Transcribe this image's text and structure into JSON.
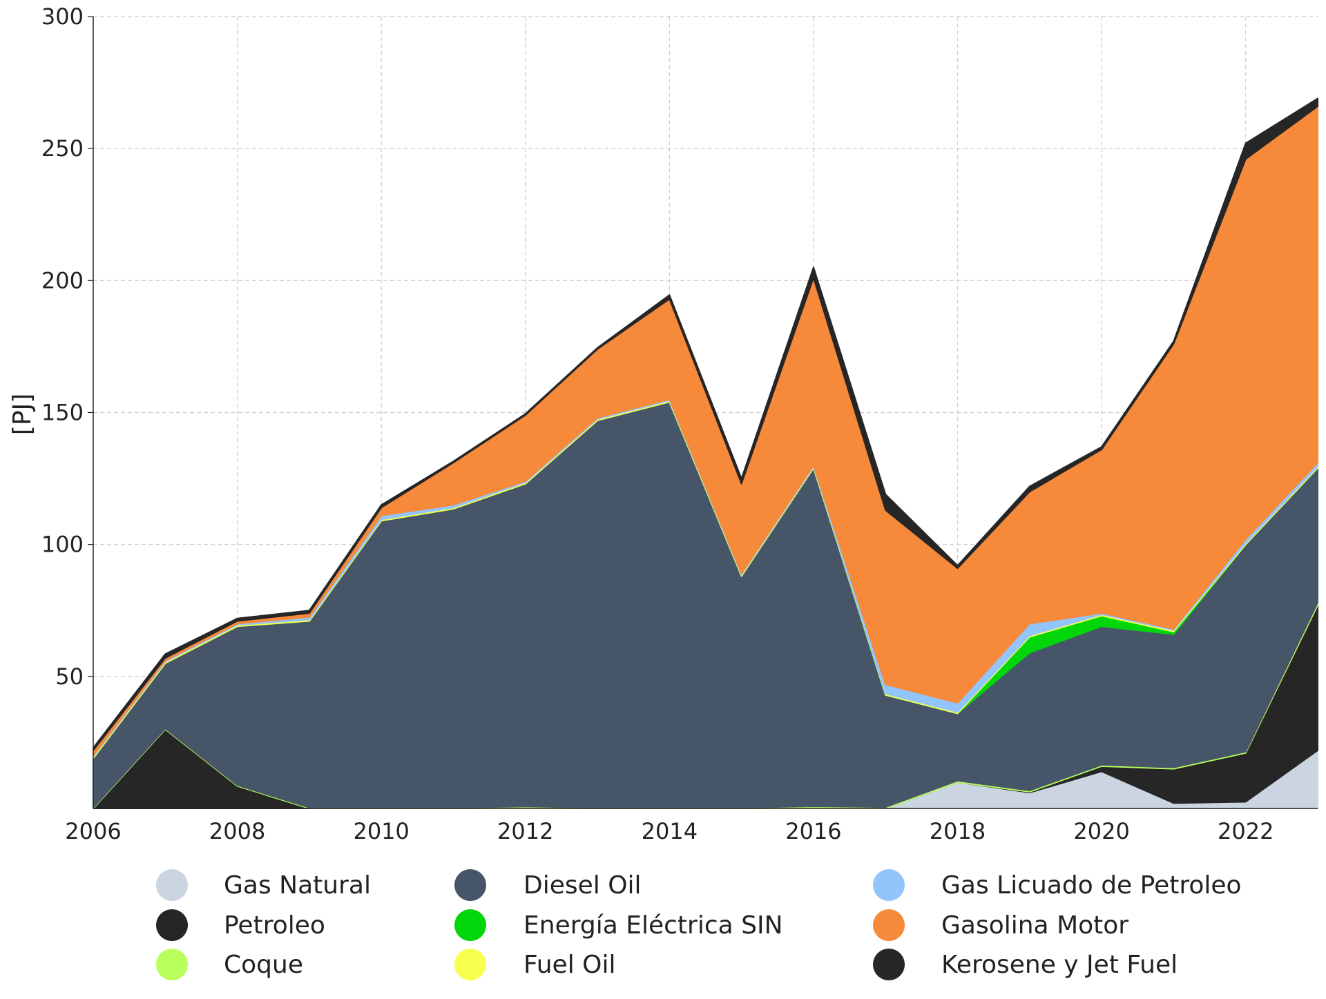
{
  "chart_data": {
    "type": "area",
    "stacked": true,
    "title": "",
    "xlabel": "",
    "ylabel": "[PJ]",
    "ylim": [
      0,
      300
    ],
    "xlim": [
      2006,
      2023
    ],
    "grid": true,
    "legend_position": "bottom",
    "x": [
      2006,
      2007,
      2008,
      2009,
      2010,
      2011,
      2012,
      2013,
      2014,
      2015,
      2016,
      2017,
      2018,
      2019,
      2020,
      2021,
      2022,
      2023
    ],
    "x_ticks": [
      "2006",
      "2008",
      "2010",
      "2012",
      "2014",
      "2016",
      "2018",
      "2020",
      "2022"
    ],
    "x_tick_values": [
      2006,
      2008,
      2010,
      2012,
      2014,
      2016,
      2018,
      2020,
      2022
    ],
    "y_ticks": [
      "50",
      "100",
      "150",
      "200",
      "250",
      "300"
    ],
    "y_tick_values": [
      50,
      100,
      150,
      200,
      250,
      300
    ],
    "series": [
      {
        "name": "Gas Natural",
        "color": "#cbd5e1",
        "values": [
          0,
          0,
          0,
          0,
          0,
          0,
          0,
          0,
          0,
          0,
          0,
          0,
          10,
          6,
          14,
          2,
          2.5,
          22
        ]
      },
      {
        "name": "Petroleo",
        "color": "#262626",
        "values": [
          0,
          30,
          8.5,
          0,
          0,
          0,
          0,
          0,
          0,
          0,
          0,
          0,
          0,
          0.3,
          2,
          13,
          18.5,
          55
        ]
      },
      {
        "name": "Coque",
        "color": "#b8ff5c",
        "values": [
          0.3,
          0.3,
          0.3,
          0.3,
          0.3,
          0.3,
          0.7,
          0.3,
          0.3,
          0.3,
          0.8,
          0.5,
          0.5,
          0.5,
          0.5,
          0.5,
          0.5,
          1
        ]
      },
      {
        "name": "Diesel Oil",
        "color": "#475569",
        "values": [
          18.7,
          24.7,
          60.2,
          70.7,
          108.7,
          113.2,
          122.3,
          146.7,
          153.7,
          87.7,
          128.2,
          42.5,
          25.5,
          52.2,
          52.5,
          50.5,
          78.5,
          51
        ]
      },
      {
        "name": "Energía Eléctrica SIN",
        "color": "#00d60a",
        "values": [
          0,
          0,
          0,
          0,
          0,
          0,
          0,
          0,
          0,
          0,
          0,
          0,
          0,
          6,
          4,
          1,
          0,
          0
        ]
      },
      {
        "name": "Fuel Oil",
        "color": "#f7ff4f",
        "values": [
          0.5,
          0.5,
          0.5,
          0.5,
          0.5,
          0.5,
          0.5,
          0.5,
          0.5,
          0.5,
          0.5,
          0.5,
          0.5,
          0.5,
          0.5,
          0.5,
          0.5,
          0.5
        ]
      },
      {
        "name": "Gas Licuado de Petroleo",
        "color": "#93c5fd",
        "values": [
          0.5,
          0.5,
          0.5,
          1,
          1.5,
          1,
          0.5,
          0.5,
          0.5,
          0.5,
          0.5,
          3.5,
          3.5,
          4.5,
          0.5,
          0.5,
          1.5,
          1.5
        ]
      },
      {
        "name": "Gasolina Motor",
        "color": "#f6893a",
        "values": [
          2,
          1,
          1,
          1.5,
          3,
          16,
          25,
          26,
          38,
          34,
          71,
          66,
          51,
          50,
          62,
          108,
          144,
          135
        ]
      },
      {
        "name": "Kerosene y Jet Fuel",
        "color": "#262626",
        "values": [
          1,
          1.5,
          1,
          1,
          1,
          0.5,
          0.5,
          0.5,
          1.5,
          2,
          4,
          6,
          1,
          2,
          1,
          1,
          6,
          3
        ]
      }
    ]
  }
}
